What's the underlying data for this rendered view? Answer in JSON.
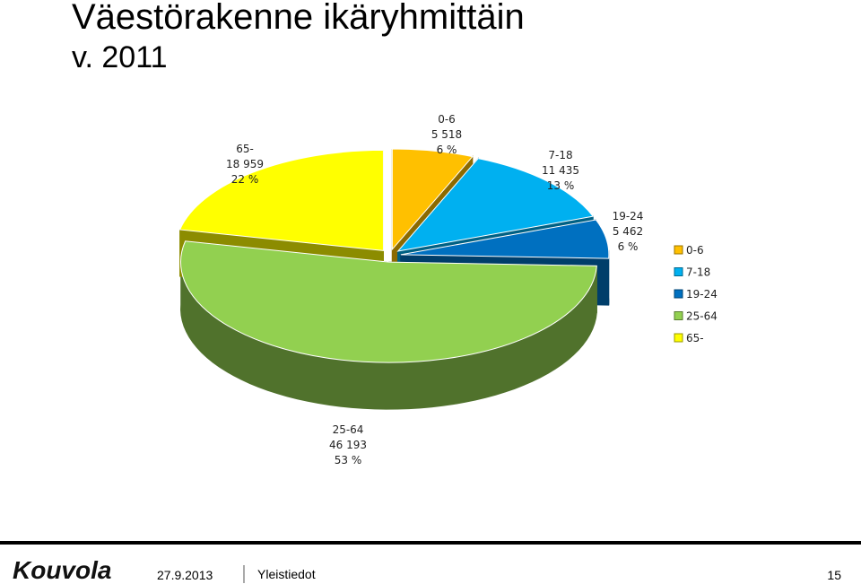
{
  "slide": {
    "title": "Väestörakenne ikäryhmittäin",
    "subtitle": "v. 2011",
    "logo": "Kouvola",
    "date": "27.9.2013",
    "section": "Yleistiedot",
    "page": "15"
  },
  "chart_data": {
    "type": "pie3d",
    "categories": [
      "0-6",
      "7-18",
      "19-24",
      "25-64",
      "65-"
    ],
    "values": [
      5518,
      11435,
      5462,
      46193,
      18959
    ],
    "value_labels": [
      "5 518",
      "11 435",
      "5 462",
      "46 193",
      "18 959"
    ],
    "percents": [
      6,
      13,
      6,
      53,
      22
    ],
    "percent_labels": [
      "6 %",
      "13 %",
      "6 %",
      "53 %",
      "22 %"
    ],
    "colors": [
      "#ffc000",
      "#00b0f0",
      "#0070c0",
      "#92d050",
      "#ffff00"
    ],
    "legend": "right"
  }
}
